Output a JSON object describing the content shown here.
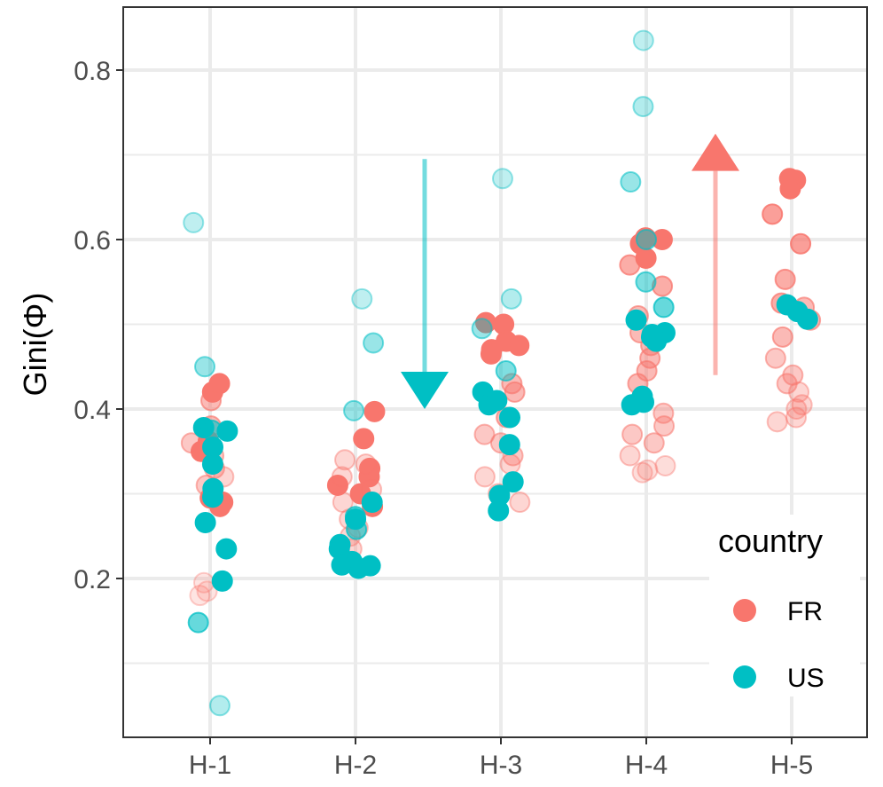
{
  "chart_data": {
    "type": "scatter",
    "title": "",
    "xlabel": "",
    "ylabel": "Gini(Φ)",
    "categories": [
      "H-1",
      "H-2",
      "H-3",
      "H-4",
      "H-5"
    ],
    "y_ticks": [
      "0.2",
      "0.4",
      "0.6",
      "0.8"
    ],
    "y_tick_values": [
      0.2,
      0.4,
      0.6,
      0.8
    ],
    "ylim": [
      0.03,
      0.86
    ],
    "grid": true,
    "legend": {
      "title": "country",
      "position": "bottom-right",
      "entries": [
        {
          "label": "FR",
          "color": "#F8766D"
        },
        {
          "label": "US",
          "color": "#00BFC4"
        }
      ]
    },
    "annotations": [
      {
        "type": "arrow-down",
        "color": "#00BFC4",
        "x_between": [
          "H-2",
          "H-3"
        ],
        "y_from": 0.695,
        "y_to": 0.4
      },
      {
        "type": "arrow-up",
        "color": "#F8766D",
        "x_between": [
          "H-4",
          "H-5"
        ],
        "y_from": 0.44,
        "y_to": 0.725
      }
    ],
    "series": [
      {
        "name": "FR",
        "color": "#F8766D",
        "points": [
          {
            "cat": "H-1",
            "y": 0.43,
            "o": 1
          },
          {
            "cat": "H-1",
            "y": 0.42,
            "o": 1
          },
          {
            "cat": "H-1",
            "y": 0.362,
            "o": 1
          },
          {
            "cat": "H-1",
            "y": 0.35,
            "o": 1
          },
          {
            "cat": "H-1",
            "y": 0.29,
            "o": 1
          },
          {
            "cat": "H-1",
            "y": 0.285,
            "o": 1
          },
          {
            "cat": "H-1",
            "y": 0.295,
            "o": 1
          },
          {
            "cat": "H-1",
            "y": 0.41,
            "o": 0.5
          },
          {
            "cat": "H-1",
            "y": 0.38,
            "o": 0.5
          },
          {
            "cat": "H-1",
            "y": 0.36,
            "o": 0.4
          },
          {
            "cat": "H-1",
            "y": 0.345,
            "o": 0.4
          },
          {
            "cat": "H-1",
            "y": 0.33,
            "o": 0.4
          },
          {
            "cat": "H-1",
            "y": 0.31,
            "o": 0.4
          },
          {
            "cat": "H-1",
            "y": 0.32,
            "o": 0.3
          },
          {
            "cat": "H-1",
            "y": 0.195,
            "o": 0.2
          },
          {
            "cat": "H-1",
            "y": 0.185,
            "o": 0.2
          },
          {
            "cat": "H-1",
            "y": 0.18,
            "o": 0.2
          },
          {
            "cat": "H-2",
            "y": 0.397,
            "o": 1
          },
          {
            "cat": "H-2",
            "y": 0.365,
            "o": 1
          },
          {
            "cat": "H-2",
            "y": 0.33,
            "o": 1
          },
          {
            "cat": "H-2",
            "y": 0.32,
            "o": 1
          },
          {
            "cat": "H-2",
            "y": 0.31,
            "o": 1
          },
          {
            "cat": "H-2",
            "y": 0.3,
            "o": 1
          },
          {
            "cat": "H-2",
            "y": 0.285,
            "o": 1
          },
          {
            "cat": "H-2",
            "y": 0.34,
            "o": 0.3
          },
          {
            "cat": "H-2",
            "y": 0.335,
            "o": 0.3
          },
          {
            "cat": "H-2",
            "y": 0.32,
            "o": 0.3
          },
          {
            "cat": "H-2",
            "y": 0.305,
            "o": 0.3
          },
          {
            "cat": "H-2",
            "y": 0.29,
            "o": 0.3
          },
          {
            "cat": "H-2",
            "y": 0.27,
            "o": 0.3
          },
          {
            "cat": "H-2",
            "y": 0.26,
            "o": 0.3
          },
          {
            "cat": "H-2",
            "y": 0.25,
            "o": 0.3
          },
          {
            "cat": "H-2",
            "y": 0.235,
            "o": 0.3
          },
          {
            "cat": "H-3",
            "y": 0.5,
            "o": 1
          },
          {
            "cat": "H-3",
            "y": 0.502,
            "o": 1
          },
          {
            "cat": "H-3",
            "y": 0.48,
            "o": 1
          },
          {
            "cat": "H-3",
            "y": 0.475,
            "o": 1
          },
          {
            "cat": "H-3",
            "y": 0.465,
            "o": 1
          },
          {
            "cat": "H-3",
            "y": 0.47,
            "o": 1
          },
          {
            "cat": "H-3",
            "y": 0.43,
            "o": 0.5
          },
          {
            "cat": "H-3",
            "y": 0.42,
            "o": 0.5
          },
          {
            "cat": "H-3",
            "y": 0.39,
            "o": 0.5
          },
          {
            "cat": "H-3",
            "y": 0.37,
            "o": 0.4
          },
          {
            "cat": "H-3",
            "y": 0.36,
            "o": 0.4
          },
          {
            "cat": "H-3",
            "y": 0.345,
            "o": 0.4
          },
          {
            "cat": "H-3",
            "y": 0.335,
            "o": 0.3
          },
          {
            "cat": "H-3",
            "y": 0.32,
            "o": 0.3
          },
          {
            "cat": "H-3",
            "y": 0.3,
            "o": 0.3
          },
          {
            "cat": "H-3",
            "y": 0.29,
            "o": 0.3
          },
          {
            "cat": "H-4",
            "y": 0.6,
            "o": 1
          },
          {
            "cat": "H-4",
            "y": 0.602,
            "o": 1
          },
          {
            "cat": "H-4",
            "y": 0.595,
            "o": 1
          },
          {
            "cat": "H-4",
            "y": 0.578,
            "o": 1
          },
          {
            "cat": "H-4",
            "y": 0.57,
            "o": 0.6
          },
          {
            "cat": "H-4",
            "y": 0.545,
            "o": 0.6
          },
          {
            "cat": "H-4",
            "y": 0.51,
            "o": 0.5
          },
          {
            "cat": "H-4",
            "y": 0.49,
            "o": 0.5
          },
          {
            "cat": "H-4",
            "y": 0.475,
            "o": 0.5
          },
          {
            "cat": "H-4",
            "y": 0.46,
            "o": 0.5
          },
          {
            "cat": "H-4",
            "y": 0.445,
            "o": 0.5
          },
          {
            "cat": "H-4",
            "y": 0.43,
            "o": 0.5
          },
          {
            "cat": "H-4",
            "y": 0.395,
            "o": 0.4
          },
          {
            "cat": "H-4",
            "y": 0.38,
            "o": 0.4
          },
          {
            "cat": "H-4",
            "y": 0.37,
            "o": 0.4
          },
          {
            "cat": "H-4",
            "y": 0.36,
            "o": 0.4
          },
          {
            "cat": "H-4",
            "y": 0.345,
            "o": 0.3
          },
          {
            "cat": "H-4",
            "y": 0.333,
            "o": 0.25
          },
          {
            "cat": "H-4",
            "y": 0.328,
            "o": 0.25
          },
          {
            "cat": "H-4",
            "y": 0.325,
            "o": 0.25
          },
          {
            "cat": "H-5",
            "y": 0.67,
            "o": 1
          },
          {
            "cat": "H-5",
            "y": 0.672,
            "o": 1
          },
          {
            "cat": "H-5",
            "y": 0.66,
            "o": 1
          },
          {
            "cat": "H-5",
            "y": 0.63,
            "o": 0.7
          },
          {
            "cat": "H-5",
            "y": 0.595,
            "o": 0.7
          },
          {
            "cat": "H-5",
            "y": 0.553,
            "o": 0.6
          },
          {
            "cat": "H-5",
            "y": 0.525,
            "o": 0.6
          },
          {
            "cat": "H-5",
            "y": 0.52,
            "o": 0.5
          },
          {
            "cat": "H-5",
            "y": 0.505,
            "o": 0.5
          },
          {
            "cat": "H-5",
            "y": 0.485,
            "o": 0.5
          },
          {
            "cat": "H-5",
            "y": 0.46,
            "o": 0.4
          },
          {
            "cat": "H-5",
            "y": 0.44,
            "o": 0.4
          },
          {
            "cat": "H-5",
            "y": 0.43,
            "o": 0.4
          },
          {
            "cat": "H-5",
            "y": 0.42,
            "o": 0.3
          },
          {
            "cat": "H-5",
            "y": 0.405,
            "o": 0.3
          },
          {
            "cat": "H-5",
            "y": 0.4,
            "o": 0.3
          },
          {
            "cat": "H-5",
            "y": 0.39,
            "o": 0.3
          },
          {
            "cat": "H-5",
            "y": 0.385,
            "o": 0.3
          }
        ]
      },
      {
        "name": "US",
        "color": "#00BFC4",
        "points": [
          {
            "cat": "H-1",
            "y": 0.62,
            "o": 0.25
          },
          {
            "cat": "H-1",
            "y": 0.45,
            "o": 0.4
          },
          {
            "cat": "H-1",
            "y": 0.378,
            "o": 1
          },
          {
            "cat": "H-1",
            "y": 0.374,
            "o": 1
          },
          {
            "cat": "H-1",
            "y": 0.375,
            "o": 0.6
          },
          {
            "cat": "H-1",
            "y": 0.355,
            "o": 1
          },
          {
            "cat": "H-1",
            "y": 0.335,
            "o": 1
          },
          {
            "cat": "H-1",
            "y": 0.306,
            "o": 1
          },
          {
            "cat": "H-1",
            "y": 0.296,
            "o": 1
          },
          {
            "cat": "H-1",
            "y": 0.266,
            "o": 1
          },
          {
            "cat": "H-1",
            "y": 0.235,
            "o": 1
          },
          {
            "cat": "H-1",
            "y": 0.197,
            "o": 1
          },
          {
            "cat": "H-1",
            "y": 0.148,
            "o": 0.6
          },
          {
            "cat": "H-1",
            "y": 0.05,
            "o": 0.3
          },
          {
            "cat": "H-2",
            "y": 0.53,
            "o": 0.25
          },
          {
            "cat": "H-2",
            "y": 0.478,
            "o": 0.4
          },
          {
            "cat": "H-2",
            "y": 0.398,
            "o": 0.4
          },
          {
            "cat": "H-2",
            "y": 0.29,
            "o": 1
          },
          {
            "cat": "H-2",
            "y": 0.27,
            "o": 1
          },
          {
            "cat": "H-2",
            "y": 0.258,
            "o": 0.6
          },
          {
            "cat": "H-2",
            "y": 0.273,
            "o": 0.6
          },
          {
            "cat": "H-2",
            "y": 0.24,
            "o": 1
          },
          {
            "cat": "H-2",
            "y": 0.235,
            "o": 1
          },
          {
            "cat": "H-2",
            "y": 0.22,
            "o": 1
          },
          {
            "cat": "H-2",
            "y": 0.215,
            "o": 1
          },
          {
            "cat": "H-2",
            "y": 0.212,
            "o": 1
          },
          {
            "cat": "H-2",
            "y": 0.216,
            "o": 1
          },
          {
            "cat": "H-3",
            "y": 0.672,
            "o": 0.25
          },
          {
            "cat": "H-3",
            "y": 0.53,
            "o": 0.3
          },
          {
            "cat": "H-3",
            "y": 0.495,
            "o": 0.4
          },
          {
            "cat": "H-3",
            "y": 0.445,
            "o": 0.5
          },
          {
            "cat": "H-3",
            "y": 0.42,
            "o": 1
          },
          {
            "cat": "H-3",
            "y": 0.41,
            "o": 1
          },
          {
            "cat": "H-3",
            "y": 0.405,
            "o": 1
          },
          {
            "cat": "H-3",
            "y": 0.39,
            "o": 1
          },
          {
            "cat": "H-3",
            "y": 0.358,
            "o": 1
          },
          {
            "cat": "H-3",
            "y": 0.314,
            "o": 1
          },
          {
            "cat": "H-3",
            "y": 0.298,
            "o": 1
          },
          {
            "cat": "H-3",
            "y": 0.28,
            "o": 1
          },
          {
            "cat": "H-4",
            "y": 0.835,
            "o": 0.25
          },
          {
            "cat": "H-4",
            "y": 0.757,
            "o": 0.3
          },
          {
            "cat": "H-4",
            "y": 0.668,
            "o": 0.4
          },
          {
            "cat": "H-4",
            "y": 0.6,
            "o": 0.5
          },
          {
            "cat": "H-4",
            "y": 0.55,
            "o": 0.5
          },
          {
            "cat": "H-4",
            "y": 0.52,
            "o": 0.6
          },
          {
            "cat": "H-4",
            "y": 0.505,
            "o": 1
          },
          {
            "cat": "H-4",
            "y": 0.49,
            "o": 1
          },
          {
            "cat": "H-4",
            "y": 0.488,
            "o": 1
          },
          {
            "cat": "H-4",
            "y": 0.48,
            "o": 1
          },
          {
            "cat": "H-4",
            "y": 0.485,
            "o": 1
          },
          {
            "cat": "H-4",
            "y": 0.415,
            "o": 1
          },
          {
            "cat": "H-4",
            "y": 0.408,
            "o": 1
          },
          {
            "cat": "H-4",
            "y": 0.405,
            "o": 1
          },
          {
            "cat": "H-5",
            "y": 0.523,
            "o": 1
          },
          {
            "cat": "H-5",
            "y": 0.515,
            "o": 1
          },
          {
            "cat": "H-5",
            "y": 0.506,
            "o": 1
          }
        ]
      }
    ]
  }
}
